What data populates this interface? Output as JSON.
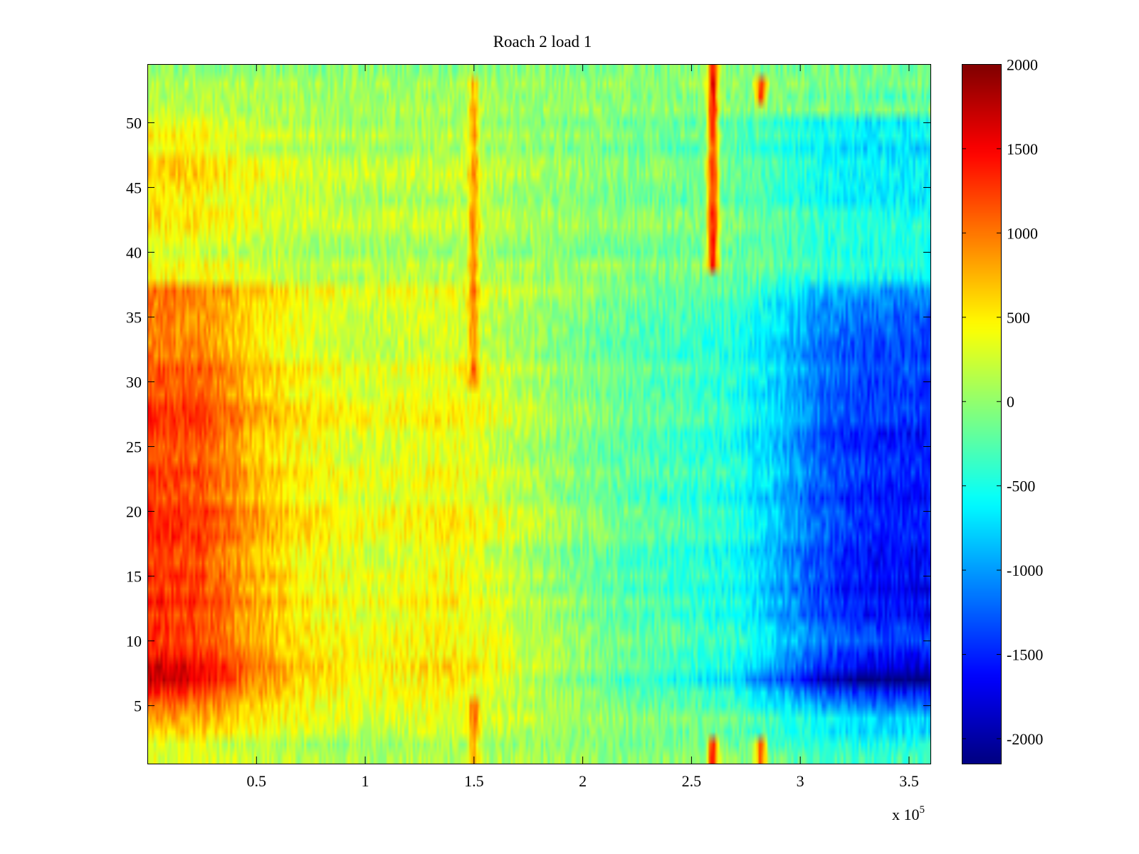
{
  "chart_data": {
    "type": "heatmap",
    "title": "Roach 2 load 1",
    "xlabel": "",
    "ylabel": "",
    "x_multiplier_label": {
      "base": "x 10",
      "exponent": "5"
    },
    "xlim": [
      0,
      3.6
    ],
    "x_scale_factor": 100000,
    "ylim": [
      0.5,
      54.5
    ],
    "x_ticks": [
      0.5,
      1,
      1.5,
      2,
      2.5,
      3,
      3.5
    ],
    "x_tick_labels": [
      "0.5",
      "1",
      "1.5",
      "2",
      "2.5",
      "3",
      "3.5"
    ],
    "y_ticks": [
      5,
      10,
      15,
      20,
      25,
      30,
      35,
      40,
      45,
      50
    ],
    "y_tick_labels": [
      "5",
      "10",
      "15",
      "20",
      "25",
      "30",
      "35",
      "40",
      "45",
      "50"
    ],
    "rows": 54,
    "colormap": "jet",
    "clim": [
      -2150,
      2000
    ],
    "colorbar": {
      "ticks": [
        -2000,
        -1500,
        -1000,
        -500,
        0,
        500,
        1000,
        1500,
        2000
      ],
      "tick_labels": [
        "-2000",
        "-1500",
        "-1000",
        "-500",
        "0",
        "500",
        "1000",
        "1500",
        "2000"
      ]
    },
    "column_profile": {
      "x": [
        0,
        0.25,
        0.45,
        0.7,
        1.0,
        1.4,
        1.6,
        1.9,
        2.2,
        2.5,
        2.7,
        2.9,
        3.1,
        3.3,
        3.6
      ],
      "value": [
        1200,
        1100,
        750,
        450,
        300,
        400,
        250,
        0,
        -200,
        -350,
        -450,
        -800,
        -1200,
        -1400,
        -1450
      ]
    },
    "row_profile": {
      "row": [
        1,
        2,
        3,
        4,
        6,
        7,
        8,
        10,
        13,
        16,
        20,
        24,
        26,
        29,
        31,
        34,
        37,
        38,
        40,
        43,
        46,
        48,
        50,
        51,
        52,
        53,
        54
      ],
      "gain": [
        0.25,
        0.3,
        0.55,
        0.6,
        1.1,
        1.5,
        1.3,
        1.0,
        1.15,
        1.1,
        1.1,
        1.0,
        1.1,
        1.0,
        0.95,
        0.85,
        0.8,
        0.4,
        0.3,
        0.4,
        0.5,
        0.45,
        0.4,
        0.1,
        0.15,
        0.1,
        0.05
      ]
    },
    "hotspots": [
      {
        "x": 2.6,
        "rows": [
          1,
          2,
          39,
          40,
          41,
          42,
          43,
          44,
          45,
          46,
          47,
          48,
          49,
          50,
          51,
          52,
          53,
          54
        ],
        "value": 1500
      },
      {
        "x": 2.82,
        "rows": [
          1,
          2,
          52,
          53
        ],
        "value": 1300
      },
      {
        "x": 1.5,
        "rows": [
          1,
          2,
          3,
          4,
          5,
          30,
          31,
          32,
          33,
          34,
          35,
          36,
          37,
          38,
          39,
          40,
          41,
          42,
          43,
          44,
          45,
          46,
          47,
          48,
          49,
          50,
          51,
          52,
          53
        ],
        "value": 700
      }
    ]
  }
}
